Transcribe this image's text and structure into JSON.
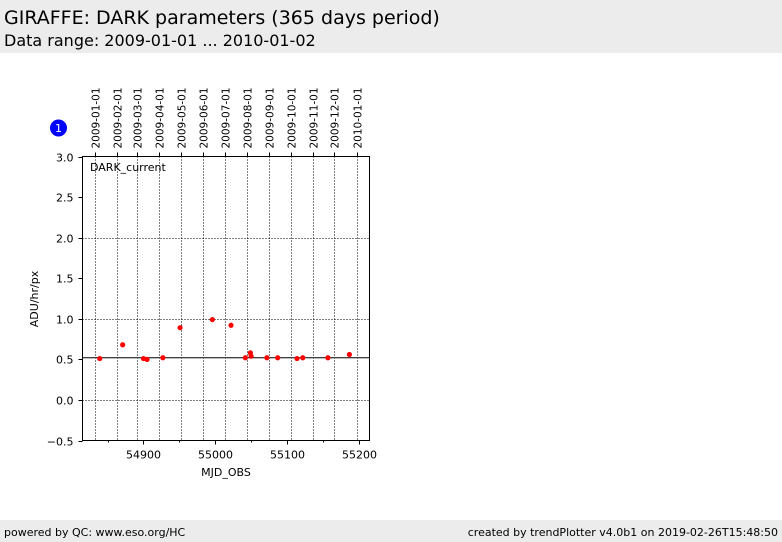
{
  "header": {
    "title": "GIRAFFE: DARK parameters (365 days period)",
    "subtitle": "Data range: 2009-01-01 ... 2010-01-02"
  },
  "footer": {
    "left": "powered by QC: www.eso.org/HC",
    "right": "created by trendPlotter v4.0b1 on 2019-02-26T15:48:50"
  },
  "colors": {
    "points": "#ff0000",
    "badge": "#0000ff",
    "panel_bg": "#ececec"
  },
  "chart_data": {
    "type": "scatter",
    "badge": "1",
    "annotation": "DARK_current",
    "xlabel": "MJD_OBS",
    "ylabel": "ADU/hr/px",
    "xlim": [
      54815,
      55215
    ],
    "ylim": [
      -0.5,
      3.0
    ],
    "xticks": [
      54900,
      55000,
      55100,
      55200
    ],
    "yticks": [
      "-0.5",
      "0.0",
      "0.5",
      "1.0",
      "1.5",
      "2.0",
      "2.5",
      "3.0"
    ],
    "hline": 0.52,
    "top_dates": [
      {
        "label": "2009-01-01",
        "mjd": 54832
      },
      {
        "label": "2009-02-01",
        "mjd": 54863
      },
      {
        "label": "2009-03-01",
        "mjd": 54891
      },
      {
        "label": "2009-04-01",
        "mjd": 54922
      },
      {
        "label": "2009-05-01",
        "mjd": 54952
      },
      {
        "label": "2009-06-01",
        "mjd": 54983
      },
      {
        "label": "2009-07-01",
        "mjd": 55013
      },
      {
        "label": "2009-08-01",
        "mjd": 55044
      },
      {
        "label": "2009-09-01",
        "mjd": 55075
      },
      {
        "label": "2009-10-01",
        "mjd": 55105
      },
      {
        "label": "2009-11-01",
        "mjd": 55136
      },
      {
        "label": "2009-12-01",
        "mjd": 55166
      },
      {
        "label": "2010-01-01",
        "mjd": 55197
      }
    ],
    "points": [
      {
        "x": 54839,
        "y": 0.51
      },
      {
        "x": 54871,
        "y": 0.68
      },
      {
        "x": 54900,
        "y": 0.51
      },
      {
        "x": 54905,
        "y": 0.5
      },
      {
        "x": 54927,
        "y": 0.52
      },
      {
        "x": 54951,
        "y": 0.89
      },
      {
        "x": 54996,
        "y": 0.99
      },
      {
        "x": 55022,
        "y": 0.92
      },
      {
        "x": 55042,
        "y": 0.52
      },
      {
        "x": 55049,
        "y": 0.58
      },
      {
        "x": 55050,
        "y": 0.54
      },
      {
        "x": 55072,
        "y": 0.52
      },
      {
        "x": 55087,
        "y": 0.52
      },
      {
        "x": 55114,
        "y": 0.51
      },
      {
        "x": 55122,
        "y": 0.52
      },
      {
        "x": 55157,
        "y": 0.52
      },
      {
        "x": 55187,
        "y": 0.56
      }
    ]
  }
}
